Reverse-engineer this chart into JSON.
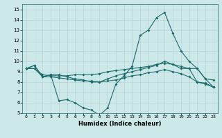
{
  "xlabel": "Humidex (Indice chaleur)",
  "bg_color": "#cce8e8",
  "line_color": "#1a6b6b",
  "grid_color": "#b0d0d0",
  "xlim": [
    -0.5,
    23.5
  ],
  "ylim": [
    5,
    15.5
  ],
  "xticks": [
    0,
    1,
    2,
    3,
    4,
    5,
    6,
    7,
    8,
    9,
    10,
    11,
    12,
    13,
    14,
    15,
    16,
    17,
    18,
    19,
    20,
    21,
    22,
    23
  ],
  "yticks": [
    5,
    6,
    7,
    8,
    9,
    10,
    11,
    12,
    13,
    14,
    15
  ],
  "curve_spike": {
    "x": [
      0,
      1,
      2,
      3,
      4,
      5,
      6,
      7,
      8,
      9,
      10,
      11,
      12,
      13,
      14,
      15,
      16,
      17,
      18,
      19,
      20,
      21,
      22,
      23
    ],
    "y": [
      9.3,
      9.6,
      8.5,
      8.7,
      6.2,
      6.3,
      6.0,
      5.5,
      5.3,
      4.8,
      5.5,
      7.8,
      8.6,
      9.5,
      12.5,
      13.0,
      14.2,
      14.7,
      12.7,
      11.0,
      10.0,
      9.3,
      8.3,
      7.5
    ]
  },
  "curve_flat1": {
    "x": [
      0,
      1,
      2,
      3,
      4,
      5,
      6,
      7,
      8,
      9,
      10,
      11,
      12,
      13,
      14,
      15,
      16,
      17,
      18,
      19,
      20,
      21,
      22,
      23
    ],
    "y": [
      9.3,
      9.3,
      8.7,
      8.6,
      8.6,
      8.6,
      8.7,
      8.7,
      8.7,
      8.8,
      9.0,
      9.1,
      9.2,
      9.3,
      9.4,
      9.5,
      9.7,
      9.8,
      9.7,
      9.5,
      9.3,
      9.3,
      8.3,
      8.2
    ]
  },
  "curve_flat2": {
    "x": [
      0,
      1,
      2,
      3,
      4,
      5,
      6,
      7,
      8,
      9,
      10,
      11,
      12,
      13,
      14,
      15,
      16,
      17,
      18,
      19,
      20,
      21,
      22,
      23
    ],
    "y": [
      9.3,
      9.3,
      8.5,
      8.5,
      8.4,
      8.3,
      8.2,
      8.1,
      8.1,
      8.0,
      8.1,
      8.2,
      8.4,
      8.6,
      8.7,
      8.9,
      9.0,
      9.2,
      9.0,
      8.8,
      8.5,
      8.0,
      7.8,
      7.5
    ]
  },
  "curve_top": {
    "x": [
      0,
      1,
      2,
      3,
      4,
      5,
      6,
      7,
      8,
      9,
      10,
      11,
      12,
      13,
      14,
      15,
      16,
      17,
      18,
      19,
      20,
      21,
      22,
      23
    ],
    "y": [
      9.3,
      9.6,
      8.5,
      8.7,
      8.7,
      8.5,
      8.3,
      8.2,
      8.0,
      8.0,
      8.3,
      8.6,
      8.8,
      9.0,
      9.2,
      9.4,
      9.6,
      10.0,
      9.7,
      9.3,
      9.3,
      8.0,
      7.9,
      7.5
    ]
  }
}
